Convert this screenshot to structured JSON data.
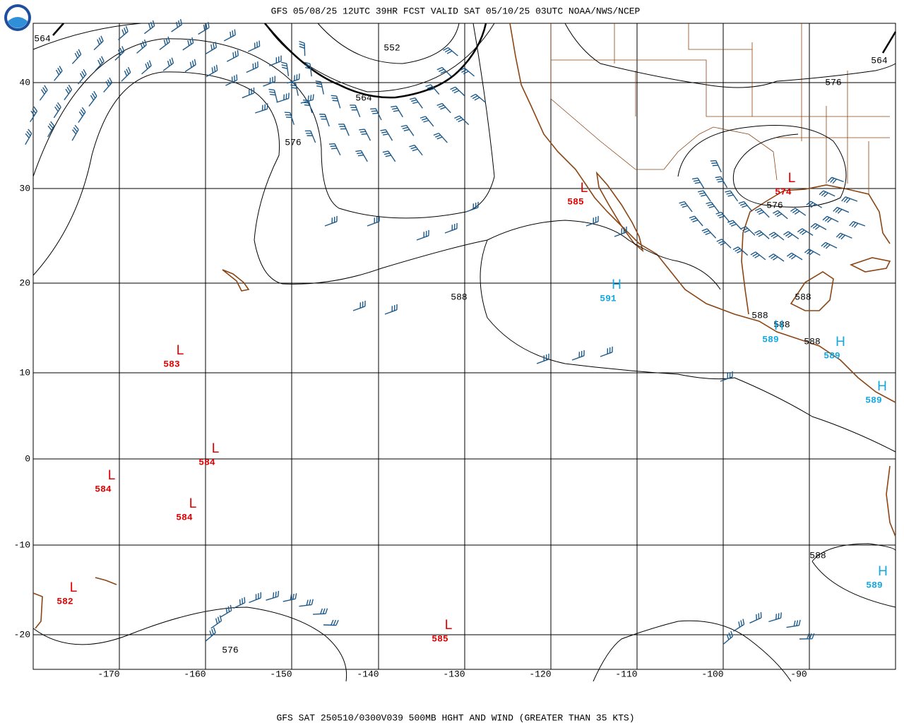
{
  "header": {
    "title": "GFS 05/08/25 12UTC 39HR FCST VALID SAT 05/10/25 03UTC NOAA/NWS/NCEP"
  },
  "footer": {
    "caption": "GFS SAT 250510/0300V039 500MB HGHT AND WIND (GREATER THAN 35 KTS)"
  },
  "map": {
    "latitude_labels": [
      "40",
      "30",
      "20",
      "10",
      "0",
      "-10",
      "-20"
    ],
    "longitude_labels": [
      "-170",
      "-160",
      "-150",
      "-140",
      "-130",
      "-120",
      "-110",
      "-100",
      "-90"
    ],
    "contour_labels": [
      "564",
      "552",
      "564",
      "576",
      "564",
      "576",
      "576",
      "588",
      "588",
      "588",
      "588",
      "588",
      "588",
      "576"
    ],
    "highs": [
      {
        "symbol": "H",
        "value": "591"
      },
      {
        "symbol": "H",
        "value": "589"
      },
      {
        "symbol": "H",
        "value": "589"
      },
      {
        "symbol": "H",
        "value": "589"
      },
      {
        "symbol": "H",
        "value": "589"
      }
    ],
    "lows": [
      {
        "symbol": "L",
        "value": "585"
      },
      {
        "symbol": "L",
        "value": "574"
      },
      {
        "symbol": "L",
        "value": "583"
      },
      {
        "symbol": "L",
        "value": "584"
      },
      {
        "symbol": "L",
        "value": "584"
      },
      {
        "symbol": "L",
        "value": "584"
      },
      {
        "symbol": "L",
        "value": "582"
      },
      {
        "symbol": "L",
        "value": "585"
      }
    ]
  }
}
